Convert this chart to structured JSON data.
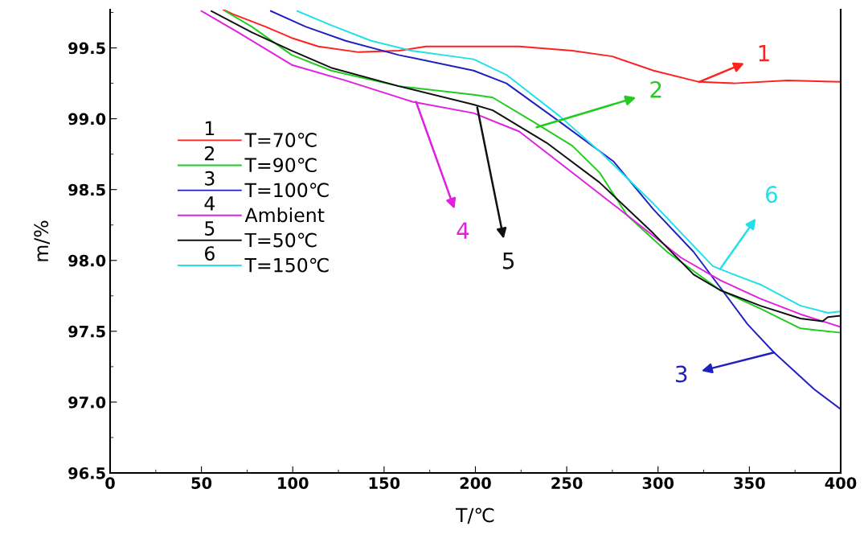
{
  "chart_data": {
    "type": "line",
    "xlabel": "T/℃",
    "ylabel": "m/%",
    "xlim": [
      0,
      400
    ],
    "ylim": [
      96.5,
      99.77
    ],
    "xticks": [
      0,
      50,
      100,
      150,
      200,
      250,
      300,
      350,
      400
    ],
    "yticks": [
      96.5,
      {
        "value": 97,
        "label": "97.0"
      },
      97.5,
      {
        "value": 98,
        "label": "98.0"
      },
      98.5,
      {
        "value": 99,
        "label": "99.0"
      },
      99.5
    ],
    "grid": false,
    "legend": "left",
    "marker": "none",
    "line_style": "solid",
    "series": [
      {
        "name": "T=70℃",
        "color": "#ff2020",
        "x": [
          62,
          67,
          85,
          99.5,
          114,
          136,
          158,
          173,
          199,
          224,
          253,
          275,
          297.5,
          322.5,
          341.5,
          371,
          400
        ],
        "values": [
          99.77,
          99.74,
          99.65,
          99.57,
          99.51,
          99.47,
          99.48,
          99.51,
          99.51,
          99.51,
          99.48,
          99.44,
          99.34,
          99.26,
          99.25,
          99.27,
          99.26
        ]
      },
      {
        "name": "T=90℃",
        "color": "#20cc20",
        "x": [
          63,
          77.5,
          99.5,
          121,
          158,
          199,
          209.5,
          231.5,
          253,
          268,
          283,
          305,
          334,
          356,
          378,
          400
        ],
        "values": [
          99.76,
          99.65,
          99.45,
          99.34,
          99.23,
          99.17,
          99.15,
          98.98,
          98.81,
          98.62,
          98.32,
          98.06,
          97.79,
          97.66,
          97.52,
          97.49
        ]
      },
      {
        "name": "T=100℃",
        "color": "#2020c0",
        "x": [
          88,
          107,
          129,
          158,
          199,
          217,
          246,
          275.5,
          297.5,
          319.5,
          334,
          349,
          363.5,
          385.5,
          400
        ],
        "values": [
          99.76,
          99.65,
          99.55,
          99.45,
          99.34,
          99.25,
          98.98,
          98.7,
          98.36,
          98.06,
          97.81,
          97.55,
          97.35,
          97.09,
          96.95
        ]
      },
      {
        "name": "Ambient",
        "color": "#e020e0",
        "x": [
          50,
          70,
          99.5,
          129,
          165.5,
          199,
          224,
          253,
          283,
          312.5,
          334,
          356,
          378,
          400
        ],
        "values": [
          99.76,
          99.61,
          99.38,
          99.27,
          99.12,
          99.04,
          98.91,
          98.62,
          98.32,
          98.02,
          97.86,
          97.73,
          97.62,
          97.53
        ]
      },
      {
        "name": "T=50℃",
        "color": "#101010",
        "x": [
          55.5,
          77.5,
          99.5,
          121,
          158,
          199,
          209.5,
          239,
          268,
          297.5,
          319.5,
          334,
          356,
          378,
          390,
          393,
          400
        ],
        "values": [
          99.76,
          99.61,
          99.48,
          99.36,
          99.23,
          99.1,
          99.06,
          98.83,
          98.55,
          98.19,
          97.9,
          97.79,
          97.68,
          97.59,
          97.57,
          97.6,
          97.61
        ]
      },
      {
        "name": "T=150℃",
        "color": "#20e0e8",
        "x": [
          102.5,
          121,
          143,
          165,
          199,
          217,
          246,
          268,
          297.5,
          330,
          341.5,
          356,
          378,
          393,
          400
        ],
        "values": [
          99.76,
          99.66,
          99.55,
          99.48,
          99.42,
          99.31,
          99.02,
          98.77,
          98.4,
          97.96,
          97.9,
          97.83,
          97.68,
          97.63,
          97.64
        ]
      }
    ],
    "annotations": [
      {
        "text": "1",
        "x": 322.5,
        "y": 99.26
      },
      {
        "text": "2",
        "x": 233.5,
        "y": 98.94
      },
      {
        "text": "3",
        "x": 363.5,
        "y": 97.35
      },
      {
        "text": "4",
        "x": 167.5,
        "y": 99.12
      },
      {
        "text": "5",
        "x": 201,
        "y": 99.08
      },
      {
        "text": "6",
        "x": 334,
        "y": 97.94
      }
    ]
  }
}
